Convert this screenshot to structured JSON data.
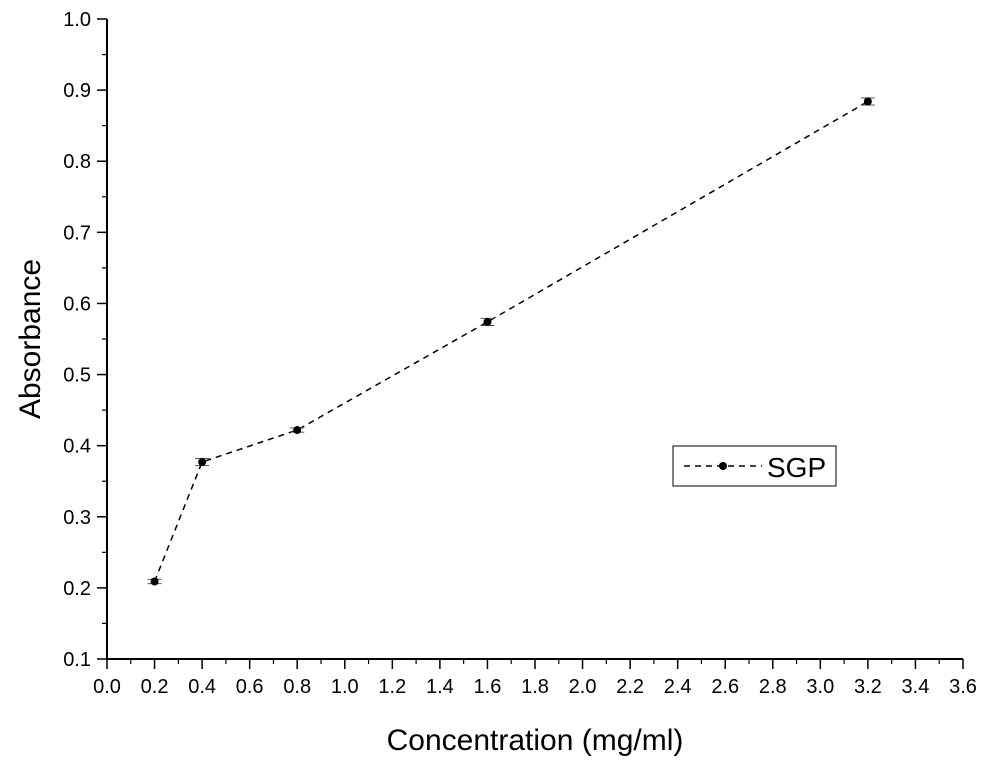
{
  "chart_data": {
    "type": "line",
    "title": "",
    "xlabel": "Concentration (mg/ml)",
    "ylabel": "Absorbance",
    "xlim": [
      0.0,
      3.6
    ],
    "ylim": [
      0.1,
      1.0
    ],
    "x_ticks": [
      "0.0",
      "0.2",
      "0.4",
      "0.6",
      "0.8",
      "1.0",
      "1.2",
      "1.4",
      "1.6",
      "1.8",
      "2.0",
      "2.2",
      "2.4",
      "2.6",
      "2.8",
      "3.0",
      "3.2",
      "3.4",
      "3.6"
    ],
    "y_ticks": [
      "0.1",
      "0.2",
      "0.3",
      "0.4",
      "0.5",
      "0.6",
      "0.7",
      "0.8",
      "0.9",
      "1.0"
    ],
    "grid": false,
    "legend_position": "right",
    "series": [
      {
        "name": "SGP",
        "style": "dashed line with circle markers and error bars",
        "color": "#000000",
        "x": [
          0.2,
          0.4,
          0.8,
          1.6,
          3.2
        ],
        "y": [
          0.209,
          0.377,
          0.422,
          0.574,
          0.884
        ],
        "error": [
          0.003,
          0.005,
          0.003,
          0.005,
          0.005
        ]
      }
    ]
  }
}
